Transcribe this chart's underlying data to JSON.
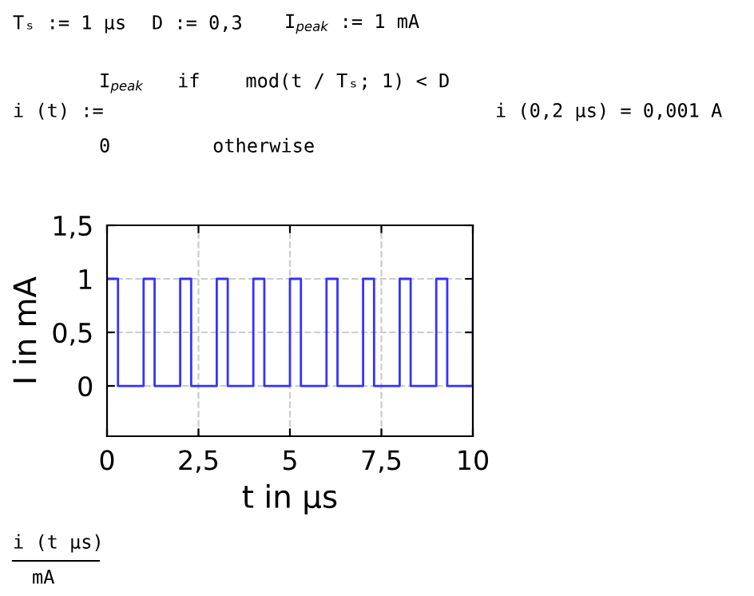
{
  "chart_data": {
    "type": "step",
    "xlabel": "t in µs",
    "ylabel": "I in mA",
    "x": [
      0,
      0.3,
      1,
      1.3,
      2,
      2.3,
      3,
      3.3,
      4,
      4.3,
      5,
      5.3,
      6,
      6.3,
      7,
      7.3,
      8,
      8.3,
      9,
      9.3,
      10
    ],
    "series": [
      {
        "color": "#3333ff",
        "values": [
          1,
          0,
          1,
          0,
          1,
          0,
          1,
          0,
          1,
          0,
          1,
          0,
          1,
          0,
          1,
          0,
          1,
          0,
          1,
          0,
          1
        ]
      }
    ],
    "xlim": [
      0,
      10
    ],
    "xticks": [
      0,
      {
        "value": 2.5,
        "label": "2,5"
      },
      5,
      {
        "value": 7.5,
        "label": "7,5"
      },
      10
    ],
    "ylim": [
      -0.47,
      1.5
    ],
    "yticks": [
      0,
      {
        "value": 0.5,
        "label": "0,5"
      },
      1,
      {
        "value": 1.5,
        "label": "1,5"
      }
    ],
    "grid": true,
    "legend": false,
    "annotations": [
      "Tₛ := 1 µs",
      "D := 0,3",
      "I$_{peak}$ := 1 mA",
      "i (t) :=",
      "I$_{peak}$   if    mod(t / Tₛ; 1) < D",
      "0         otherwise",
      "i (0,2 µs) = 0,001 A",
      "i (t µs)",
      "mA"
    ]
  }
}
